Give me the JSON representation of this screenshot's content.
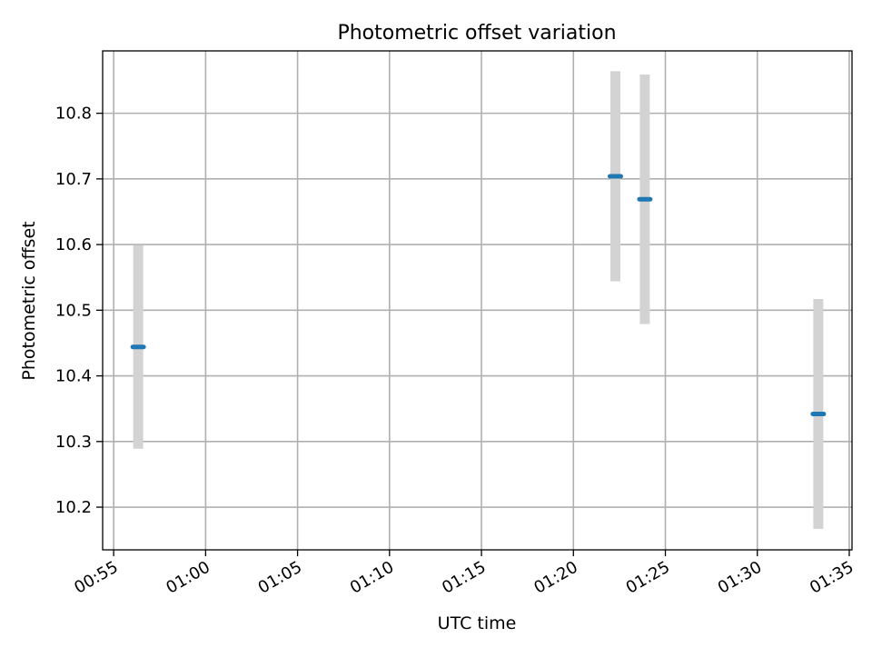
{
  "chart_data": {
    "type": "scatter",
    "title": "Photometric offset variation",
    "xlabel": "UTC time",
    "ylabel": "Photometric offset",
    "x_ticks": [
      "00:55",
      "01:00",
      "01:05",
      "01:10",
      "01:15",
      "01:20",
      "01:25",
      "01:30",
      "01:35"
    ],
    "y_ticks": [
      "10.2",
      "10.3",
      "10.4",
      "10.5",
      "10.6",
      "10.7",
      "10.8"
    ],
    "xlim": [
      "00:54:24",
      "01:35:09"
    ],
    "ylim": [
      10.135,
      10.895
    ],
    "grid": true,
    "points": [
      {
        "time": "00:56:20",
        "y": 10.444,
        "err": 0.155
      },
      {
        "time": "01:22:17",
        "y": 10.704,
        "err": 0.16
      },
      {
        "time": "01:23:53",
        "y": 10.669,
        "err": 0.19
      },
      {
        "time": "01:33:19",
        "y": 10.342,
        "err": 0.175
      }
    ],
    "colors": {
      "marker": "#1f77b4",
      "errorbar": "#d3d3d3",
      "grid": "#b0b0b0",
      "axes": "#000000"
    }
  }
}
